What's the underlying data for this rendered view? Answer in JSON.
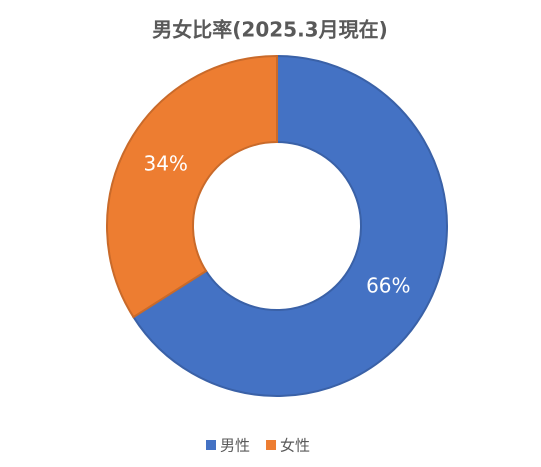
{
  "chart_data": {
    "type": "donut",
    "title": "男女比率(2025.3月現在)",
    "categories": [
      "男性",
      "女性"
    ],
    "values": [
      66,
      34
    ],
    "value_labels": [
      "66%",
      "34%"
    ],
    "colors": [
      "#4472c4",
      "#ed7d31"
    ],
    "legend": "bottom"
  }
}
